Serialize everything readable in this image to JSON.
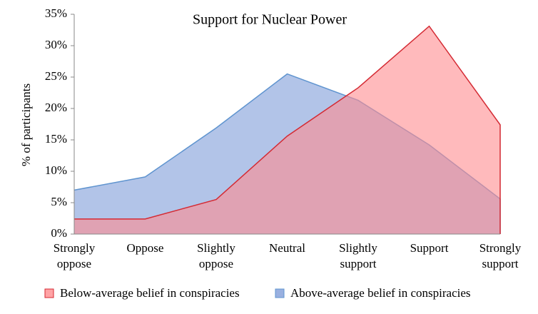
{
  "chart_data": {
    "type": "area",
    "title": "Support for Nuclear Power",
    "ylabel": "% of participants",
    "categories": [
      "Strongly oppose",
      "Oppose",
      "Slightly oppose",
      "Neutral",
      "Slightly support",
      "Support",
      "Strongly support"
    ],
    "series": [
      {
        "name": "Below-average belief in conspiracies",
        "color": "#d42a33",
        "fill": "#ff8c8f",
        "values": [
          2.4,
          2.4,
          5.5,
          15.6,
          23.3,
          33.1,
          17.4
        ]
      },
      {
        "name": "Above-average belief in conspiracies",
        "color": "#5f94cf",
        "fill": "#7f9cd8",
        "values": [
          7.0,
          9.1,
          16.9,
          25.5,
          21.3,
          14.2,
          5.6
        ]
      }
    ],
    "ylim": [
      0,
      35
    ],
    "yticks": [
      {
        "value": 0,
        "label": "0%"
      },
      {
        "value": 5,
        "label": "5%"
      },
      {
        "value": 10,
        "label": "10%"
      },
      {
        "value": 15,
        "label": "15%"
      },
      {
        "value": 20,
        "label": "20%"
      },
      {
        "value": 25,
        "label": "25%"
      },
      {
        "value": 30,
        "label": "30%"
      },
      {
        "value": 35,
        "label": "35%"
      }
    ]
  }
}
